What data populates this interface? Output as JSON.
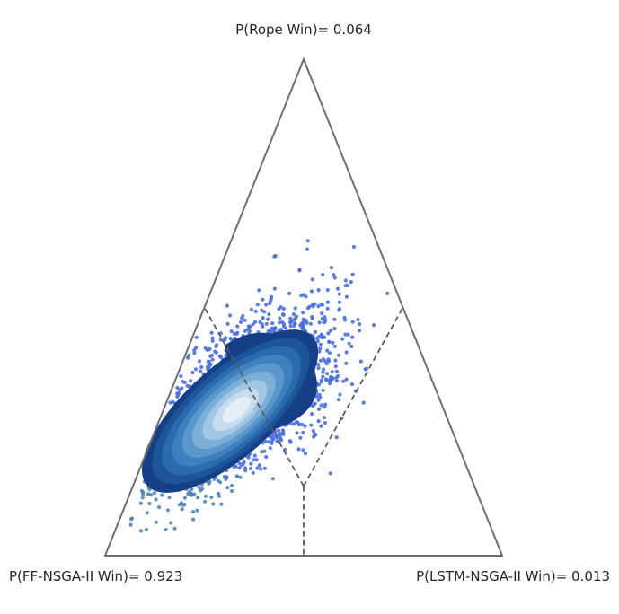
{
  "chart_data": {
    "type": "scatter",
    "subtype": "ternary-posterior-density",
    "corner_labels": {
      "top": "P(Rope Win)= 0.064",
      "left": "P(FF-NSGA-II Win)= 0.923",
      "right": "P(LSTM-NSGA-II Win)= 0.013"
    },
    "probabilities": {
      "rope": 0.064,
      "ff_nsga_ii": 0.923,
      "lstm_nsga_ii": 0.013
    },
    "region_split_point": {
      "left": 0.43,
      "right": 0.43,
      "top": 0.14
    },
    "region_colors": {
      "left": "#4f86b8",
      "top": "#4a6fe0",
      "right": "#7aa8f0"
    },
    "density_colors": [
      "#153f86",
      "#1c5598",
      "#2a6aad",
      "#3e7fbd",
      "#5b97cb",
      "#7cafd8",
      "#a1c7e4",
      "#c5dcef",
      "#e3eef8"
    ],
    "axis_color": "#6e6e6e",
    "grid": false,
    "legend": "none"
  }
}
